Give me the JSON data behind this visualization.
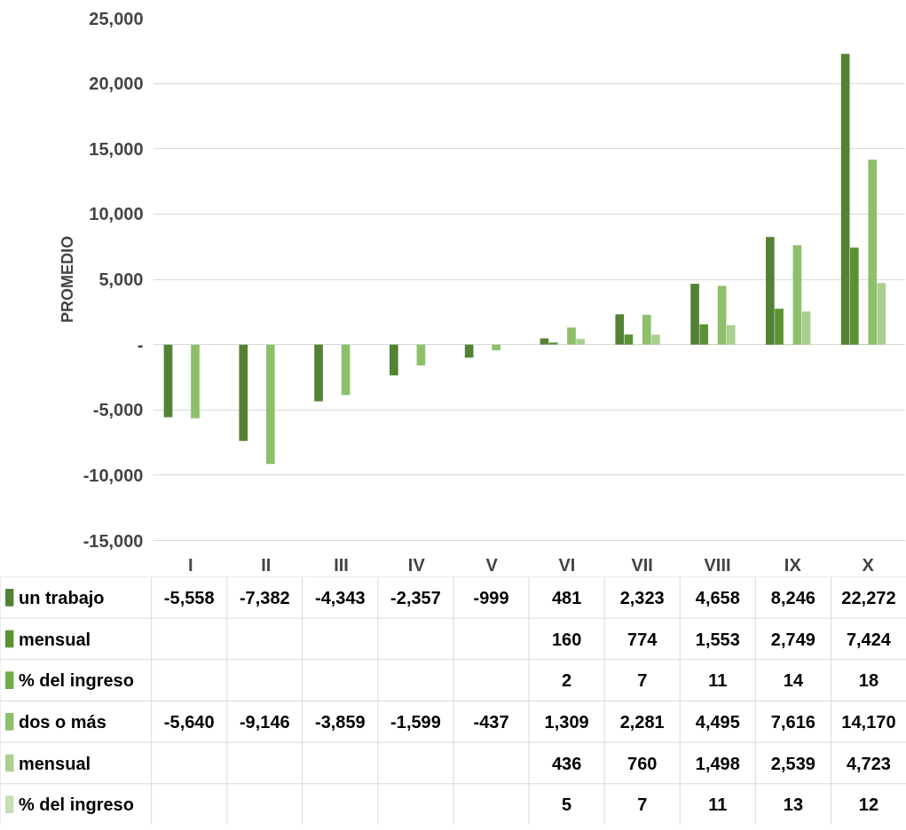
{
  "chart_data": {
    "type": "bar",
    "ylabel": "PROMEDIO",
    "categories": [
      "I",
      "II",
      "III",
      "IV",
      "V",
      "VI",
      "VII",
      "VIII",
      "IX",
      "X"
    ],
    "series": [
      {
        "name": "un trabajo",
        "color": "#548235",
        "values": [
          -5558,
          -7382,
          -4343,
          -2357,
          -999,
          481,
          2323,
          4658,
          8246,
          22272
        ],
        "value_labels": [
          "-5,558",
          "-7,382",
          "-4,343",
          "-2,357",
          "-999",
          "481",
          "2,323",
          "4,658",
          "8,246",
          "22,272"
        ]
      },
      {
        "name": "mensual",
        "color": "#5a9332",
        "values": [
          null,
          null,
          null,
          null,
          null,
          160,
          774,
          1553,
          2749,
          7424
        ],
        "value_labels": [
          null,
          null,
          null,
          null,
          null,
          "160",
          "774",
          "1,553",
          "2,749",
          "7,424"
        ]
      },
      {
        "name": "% del ingreso",
        "color": "#70ad47",
        "values": [
          null,
          null,
          null,
          null,
          null,
          2,
          7,
          11,
          14,
          18
        ],
        "value_labels": [
          null,
          null,
          null,
          null,
          null,
          "2",
          "7",
          "11",
          "14",
          "18"
        ]
      },
      {
        "name": "dos o más",
        "color": "#8cc06a",
        "values": [
          -5640,
          -9146,
          -3859,
          -1599,
          -437,
          1309,
          2281,
          4495,
          7616,
          14170
        ],
        "value_labels": [
          "-5,640",
          "-9,146",
          "-3,859",
          "-1,599",
          "-437",
          "1,309",
          "2,281",
          "4,495",
          "7,616",
          "14,170"
        ]
      },
      {
        "name": "mensual",
        "color": "#a9d08e",
        "values": [
          null,
          null,
          null,
          null,
          null,
          436,
          760,
          1498,
          2539,
          4723
        ],
        "value_labels": [
          null,
          null,
          null,
          null,
          null,
          "436",
          "760",
          "1,498",
          "2,539",
          "4,723"
        ]
      },
      {
        "name": "% del ingreso",
        "color": "#c5e0b4",
        "values": [
          null,
          null,
          null,
          null,
          null,
          5,
          7,
          11,
          13,
          12
        ],
        "value_labels": [
          null,
          null,
          null,
          null,
          null,
          "5",
          "7",
          "11",
          "13",
          "12"
        ]
      }
    ],
    "ylim": [
      -15000,
      25000
    ],
    "yticks": [
      {
        "value": -15000,
        "label": "-15,000"
      },
      {
        "value": -10000,
        "label": "-10,000"
      },
      {
        "value": -5000,
        "label": "-5,000"
      },
      {
        "value": 0,
        "label": "-"
      },
      {
        "value": 5000,
        "label": "5,000"
      },
      {
        "value": 10000,
        "label": "10,000"
      },
      {
        "value": 15000,
        "label": "15,000"
      },
      {
        "value": 20000,
        "label": "20,000"
      },
      {
        "value": 25000,
        "label": "25,000"
      }
    ],
    "grid": "y",
    "legend": "bottom"
  }
}
